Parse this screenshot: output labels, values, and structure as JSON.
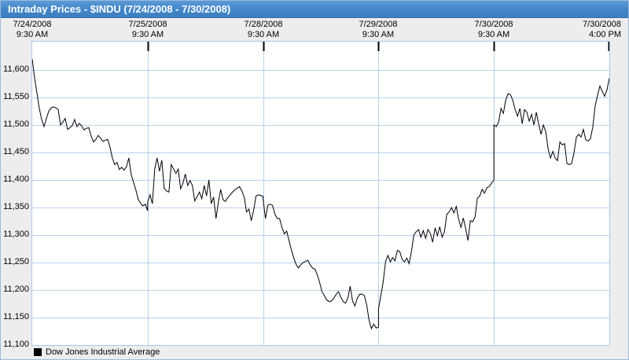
{
  "colors": {
    "title_bar": "#4286c8",
    "grid": "#b7d1ee",
    "plot_border": "#a9c7e9",
    "panel_bg": "#ededed",
    "line": "#000000"
  },
  "y_axis": {
    "tick_labels": [
      "11,600",
      "11,550",
      "11,500",
      "11,450",
      "11,400",
      "11,350",
      "11,300",
      "11,250",
      "11,200",
      "11,150",
      "11,100"
    ]
  },
  "chart_data": {
    "type": "line",
    "title": "Intraday Prices - $INDU (7/24/2008 - 7/30/2008)",
    "series_name": "Dow Jones Industrial Average",
    "line_color": "#000000",
    "xlabel": "",
    "ylabel": "",
    "ylim": [
      11100,
      11651
    ],
    "y_ticks": [
      11600,
      11550,
      11500,
      11450,
      11400,
      11350,
      11300,
      11250,
      11200,
      11150,
      11100
    ],
    "grid": true,
    "legend_position": "bottom-left",
    "x_labels": [
      {
        "date": "7/24/2008",
        "time": "9:30 AM",
        "align": "center"
      },
      {
        "date": "7/25/2008",
        "time": "9:30 AM",
        "align": "center"
      },
      {
        "date": "7/28/2008",
        "time": "9:30 AM",
        "align": "center"
      },
      {
        "date": "7/29/2008",
        "time": "9:30 AM",
        "align": "center"
      },
      {
        "date": "7/30/2008",
        "time": "9:30 AM",
        "align": "center"
      },
      {
        "date": "7/30/2008",
        "time": "4:00 PM",
        "align": "right"
      }
    ],
    "days": [
      {
        "date": "7/24/2008",
        "values": [
          11620,
          11585,
          11558,
          11530,
          11510,
          11497,
          11512,
          11525,
          11531,
          11533,
          11531,
          11528,
          11500,
          11505,
          11512,
          11492,
          11495,
          11499,
          11510,
          11497,
          11503,
          11498,
          11491,
          11494,
          11495,
          11480,
          11469,
          11474,
          11481,
          11476,
          11470,
          11472,
          11474,
          11460,
          11440,
          11428,
          11432,
          11419,
          11423,
          11418,
          11424,
          11440,
          11410,
          11396,
          11382,
          11365,
          11358,
          11353,
          11356,
          11344
        ]
      },
      {
        "date": "7/25/2008",
        "values": [
          11360,
          11373,
          11357,
          11420,
          11440,
          11416,
          11436,
          11385,
          11380,
          11378,
          11428,
          11420,
          11412,
          11420,
          11384,
          11394,
          11411,
          11390,
          11399,
          11390,
          11362,
          11370,
          11378,
          11366,
          11390,
          11371,
          11400,
          11357,
          11369,
          11330,
          11359,
          11383,
          11364,
          11361,
          11368,
          11373,
          11378,
          11382,
          11385,
          11388,
          11380,
          11369,
          11342,
          11347,
          11326,
          11345,
          11371,
          11373,
          11372,
          11370
        ]
      },
      {
        "date": "7/28/2008",
        "values": [
          11366,
          11330,
          11354,
          11356,
          11354,
          11338,
          11330,
          11330,
          11314,
          11302,
          11307,
          11290,
          11273,
          11259,
          11247,
          11240,
          11246,
          11250,
          11252,
          11254,
          11246,
          11240,
          11238,
          11228,
          11214,
          11197,
          11190,
          11182,
          11179,
          11180,
          11185,
          11192,
          11197,
          11187,
          11179,
          11176,
          11186,
          11207,
          11180,
          11171,
          11185,
          11192,
          11193,
          11190,
          11173,
          11145,
          11130,
          11138,
          11131,
          11133
        ]
      },
      {
        "date": "7/29/2008",
        "values": [
          11166,
          11190,
          11215,
          11252,
          11263,
          11251,
          11259,
          11253,
          11272,
          11270,
          11256,
          11251,
          11258,
          11248,
          11270,
          11300,
          11306,
          11310,
          11296,
          11308,
          11294,
          11310,
          11303,
          11287,
          11313,
          11299,
          11315,
          11296,
          11306,
          11338,
          11342,
          11350,
          11340,
          11352,
          11329,
          11314,
          11331,
          11312,
          11290,
          11326,
          11324,
          11333,
          11367,
          11371,
          11383,
          11376,
          11386,
          11388,
          11394,
          11400
        ]
      },
      {
        "date": "7/30/2008",
        "values": [
          11500,
          11497,
          11505,
          11530,
          11521,
          11545,
          11557,
          11555,
          11545,
          11528,
          11516,
          11530,
          11502,
          11528,
          11523,
          11507,
          11519,
          11500,
          11523,
          11502,
          11483,
          11500,
          11488,
          11457,
          11440,
          11452,
          11440,
          11435,
          11469,
          11464,
          11466,
          11430,
          11428,
          11430,
          11450,
          11478,
          11483,
          11478,
          11492,
          11473,
          11471,
          11475,
          11497,
          11535,
          11554,
          11571,
          11561,
          11552,
          11564,
          11585
        ]
      }
    ]
  }
}
